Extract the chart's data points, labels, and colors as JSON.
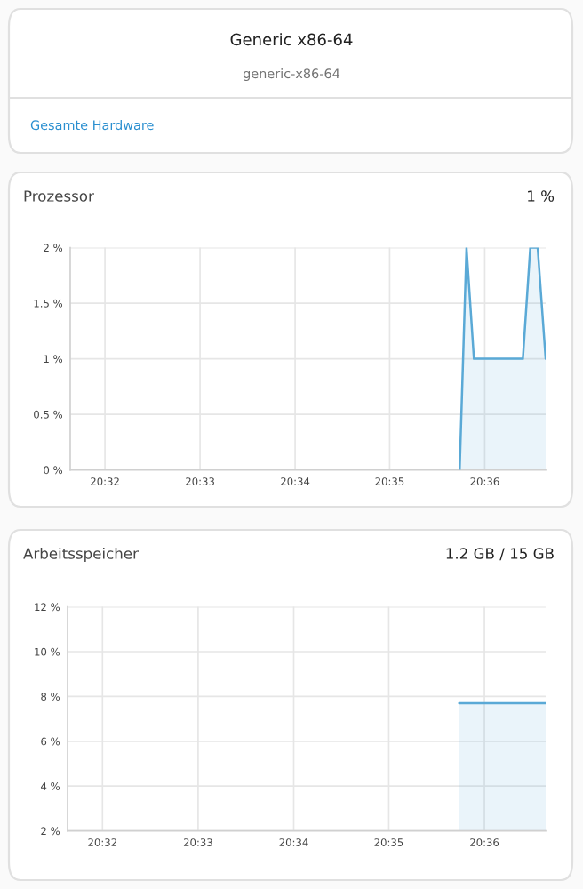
{
  "chart_data": [
    {
      "type": "other",
      "title": "Generic x86-64",
      "subtitle": "generic-x86-64",
      "annotations": [
        "Gesamte Hardware"
      ]
    },
    {
      "type": "area",
      "title": "Prozessor",
      "subtitle": "1 %",
      "x": [
        20.5956,
        20.5968,
        20.5981,
        20.6067,
        20.608,
        20.6093,
        20.6107
      ],
      "series": [
        {
          "color": "#5aa9d6",
          "values": [
            0,
            2,
            1,
            1,
            2,
            2,
            1
          ]
        }
      ],
      "xlim": [
        20.5272,
        20.6107
      ],
      "xticks": [
        {
          "value": 20.5333,
          "label": "20:32"
        },
        {
          "value": 20.55,
          "label": "20:33"
        },
        {
          "value": 20.5667,
          "label": "20:34"
        },
        {
          "value": 20.5833,
          "label": "20:35"
        },
        {
          "value": 20.6,
          "label": "20:36"
        }
      ],
      "ylim": [
        0,
        2
      ],
      "yticks": [
        {
          "value": 0,
          "label": "0 %"
        },
        {
          "value": 0.5,
          "label": "0.5 %"
        },
        {
          "value": 1,
          "label": "1 %"
        },
        {
          "value": 1.5,
          "label": "1.5 %"
        },
        {
          "value": 2,
          "label": "2 %"
        }
      ],
      "grid": true
    },
    {
      "type": "area",
      "title": "Arbeitsspeicher",
      "subtitle": "1.2 GB / 15 GB",
      "x": [
        20.5956,
        20.6107
      ],
      "series": [
        {
          "color": "#5aa9d6",
          "values": [
            7.7,
            7.7
          ]
        }
      ],
      "xlim": [
        20.5272,
        20.6107
      ],
      "xticks": [
        {
          "value": 20.5333,
          "label": "20:32"
        },
        {
          "value": 20.55,
          "label": "20:33"
        },
        {
          "value": 20.5667,
          "label": "20:34"
        },
        {
          "value": 20.5833,
          "label": "20:35"
        },
        {
          "value": 20.6,
          "label": "20:36"
        }
      ],
      "ylim": [
        2,
        12
      ],
      "yticks": [
        {
          "value": 2,
          "label": "2 %"
        },
        {
          "value": 4,
          "label": "4 %"
        },
        {
          "value": 6,
          "label": "6 %"
        },
        {
          "value": 8,
          "label": "8 %"
        },
        {
          "value": 10,
          "label": "10 %"
        },
        {
          "value": 12,
          "label": "12 %"
        }
      ],
      "grid": true
    }
  ]
}
